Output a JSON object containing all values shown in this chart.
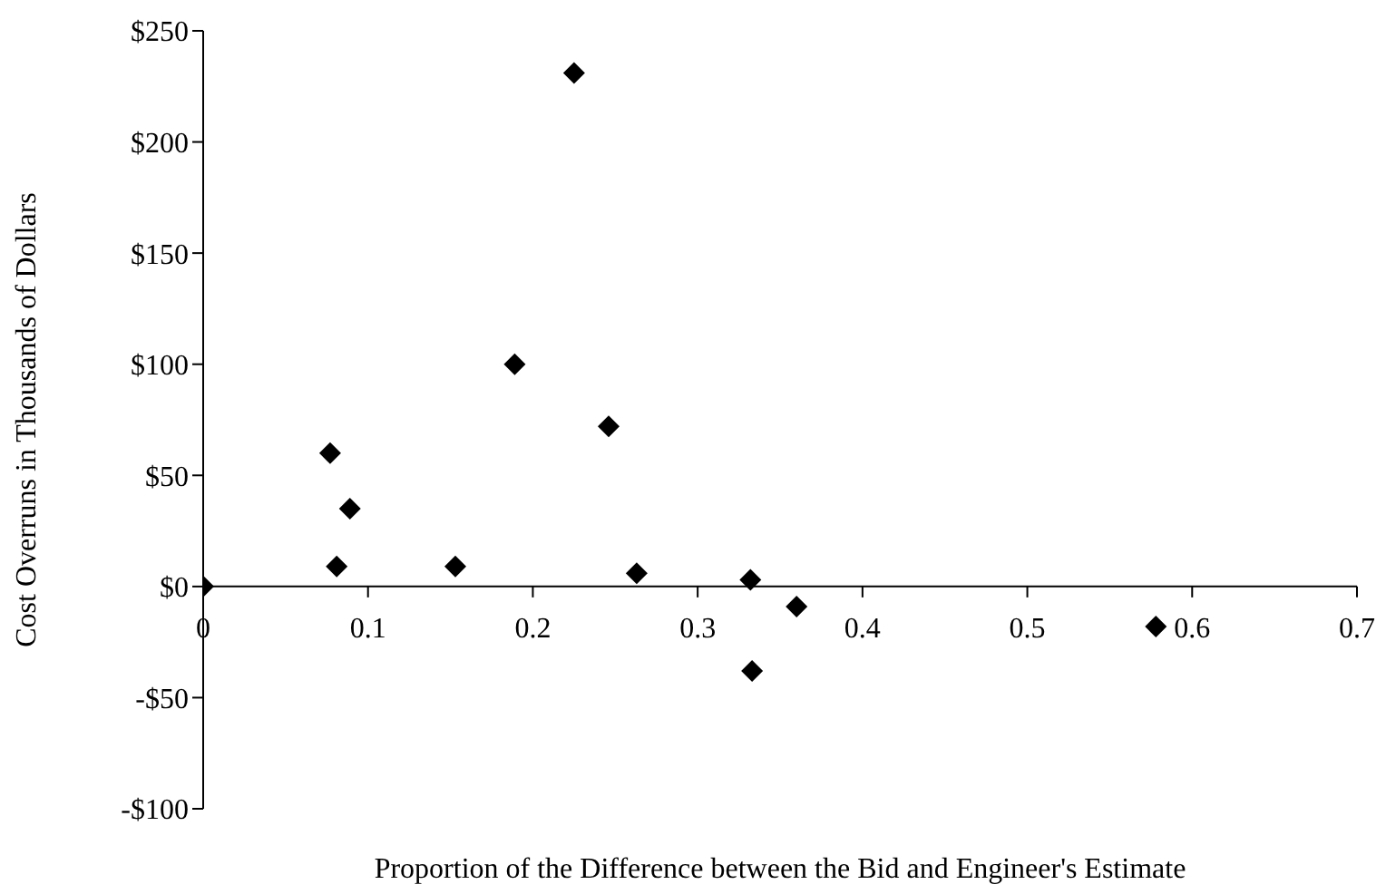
{
  "chart_data": {
    "type": "scatter",
    "xlabel": "Proportion of the Difference between the Bid and Engineer's Estimate",
    "ylabel": "Cost Overruns in Thousands of Dollars",
    "x": [
      0.0,
      0.077,
      0.081,
      0.089,
      0.153,
      0.189,
      0.225,
      0.246,
      0.263,
      0.332,
      0.333,
      0.36,
      0.578
    ],
    "series": [
      {
        "color": "#000000",
        "values": [
          0,
          60,
          9,
          35,
          9,
          100,
          231,
          72,
          6,
          3,
          -38,
          -9,
          -18
        ]
      }
    ],
    "xlim": [
      0,
      0.7
    ],
    "xticks": [
      0,
      0.1,
      0.2,
      0.3,
      0.4,
      0.5,
      0.6,
      0.7
    ],
    "ylim": [
      -100,
      250
    ],
    "yticks": [
      {
        "value": -100,
        "label": "-$100"
      },
      {
        "value": -50,
        "label": "-$50"
      },
      {
        "value": 0,
        "label": "$0"
      },
      {
        "value": 50,
        "label": "$50"
      },
      {
        "value": 100,
        "label": "$100"
      },
      {
        "value": 150,
        "label": "$150"
      },
      {
        "value": 200,
        "label": "$200"
      },
      {
        "value": 250,
        "label": "$250"
      }
    ],
    "marker": "diamond",
    "grid": false,
    "legend": false
  }
}
